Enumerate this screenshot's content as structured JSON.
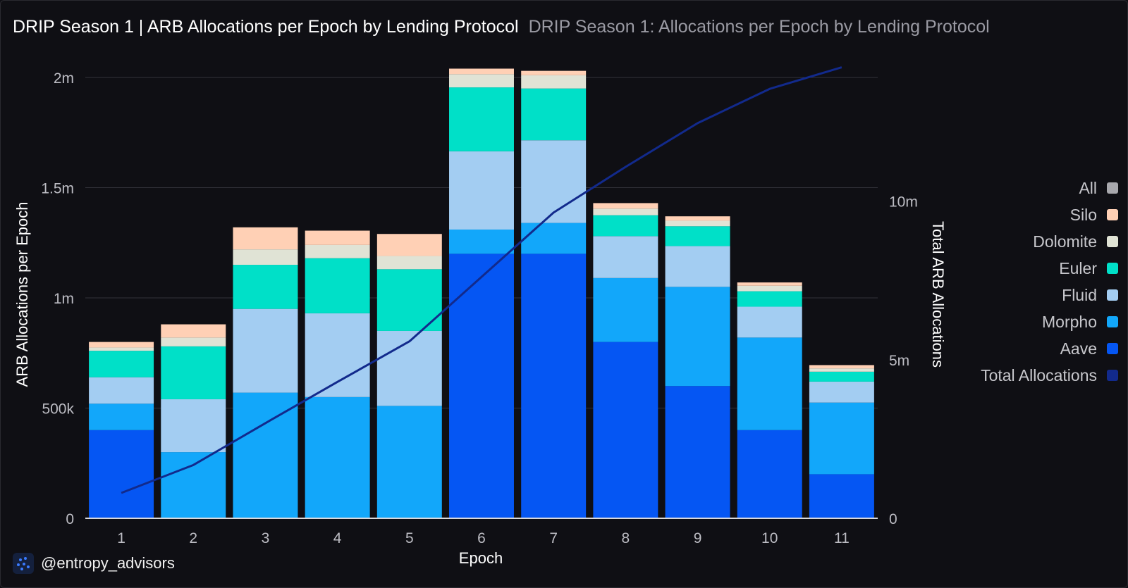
{
  "header": {
    "title": "DRIP Season 1 | ARB Allocations per Epoch by Lending Protocol",
    "subtitle": "DRIP Season 1: Allocations per Epoch by Lending Protocol"
  },
  "brand": {
    "handle": "@entropy_advisors"
  },
  "legend": {
    "items": [
      {
        "label": "All",
        "color": "#a8a8ad"
      },
      {
        "label": "Silo",
        "color": "#ffd0b5"
      },
      {
        "label": "Dolomite",
        "color": "#e0e3d5"
      },
      {
        "label": "Euler",
        "color": "#00e0c8"
      },
      {
        "label": "Fluid",
        "color": "#a3cdf2"
      },
      {
        "label": "Morpho",
        "color": "#12a7fa"
      },
      {
        "label": "Aave",
        "color": "#0556f3"
      },
      {
        "label": "Total Allocations",
        "color": "#122a8c"
      }
    ]
  },
  "chart_data": {
    "type": "bar",
    "stacked": true,
    "title": "DRIP Season 1 | ARB Allocations per Epoch by Lending Protocol",
    "subtitle": "DRIP Season 1: Allocations per Epoch by Lending Protocol",
    "xlabel": "Epoch",
    "ylabel": "ARB Allocations per Epoch",
    "y2label": "Total ARB Allocations",
    "categories": [
      "1",
      "2",
      "3",
      "4",
      "5",
      "6",
      "7",
      "8",
      "9",
      "10",
      "11"
    ],
    "ylim": [
      0,
      2000000
    ],
    "y_ticks": [
      0,
      500000,
      1000000,
      1500000,
      2000000
    ],
    "y_tick_labels": [
      "0",
      "500k",
      "1m",
      "1.5m",
      "2m"
    ],
    "y2lim": [
      0,
      13900000
    ],
    "y2_ticks": [
      0,
      5000000,
      10000000
    ],
    "y2_tick_labels": [
      "0",
      "5m",
      "10m"
    ],
    "grid": true,
    "legend_position": "right",
    "series": [
      {
        "name": "Aave",
        "color": "#0556f3",
        "values": [
          400000,
          0,
          0,
          0,
          0,
          1200000,
          1200000,
          800000,
          600000,
          400000,
          200000
        ]
      },
      {
        "name": "Morpho",
        "color": "#12a7fa",
        "values": [
          120000,
          300000,
          570000,
          550000,
          510000,
          110000,
          140000,
          290000,
          450000,
          420000,
          325000
        ]
      },
      {
        "name": "Fluid",
        "color": "#a3cdf2",
        "values": [
          120000,
          240000,
          380000,
          380000,
          340000,
          355000,
          375000,
          190000,
          185000,
          140000,
          95000
        ]
      },
      {
        "name": "Euler",
        "color": "#00e0c8",
        "values": [
          120000,
          240000,
          200000,
          250000,
          280000,
          290000,
          235000,
          95000,
          90000,
          70000,
          45000
        ]
      },
      {
        "name": "Dolomite",
        "color": "#e0e3d5",
        "values": [
          15000,
          40000,
          70000,
          60000,
          60000,
          60000,
          60000,
          30000,
          25000,
          25000,
          15000
        ]
      },
      {
        "name": "Silo",
        "color": "#ffd0b5",
        "values": [
          25000,
          60000,
          100000,
          65000,
          100000,
          25000,
          20000,
          25000,
          20000,
          15000,
          15000
        ]
      }
    ],
    "line_series": [
      {
        "name": "Total Allocations",
        "color": "#122a8c",
        "axis": "right",
        "values": [
          800000,
          1680000,
          3000000,
          4300000,
          5580000,
          7610000,
          9640000,
          11080000,
          12460000,
          13540000,
          14220000
        ]
      }
    ]
  }
}
